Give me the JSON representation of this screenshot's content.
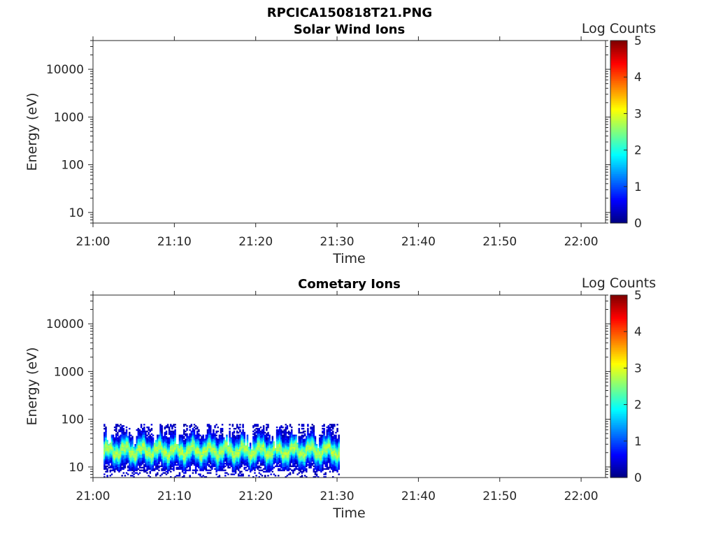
{
  "figure_title": "RPCICA150818T21.PNG",
  "colorscale": [
    "#00007f",
    "#0000ff",
    "#007fff",
    "#00ffff",
    "#7fff7f",
    "#ffff00",
    "#ff7f00",
    "#ff0000",
    "#7f0000"
  ],
  "chart_data": [
    {
      "type": "heatmap",
      "title": "Solar Wind Ions",
      "xlabel": "Time",
      "ylabel": "Energy (eV)",
      "yscale": "log",
      "xlim": [
        "21:00",
        "22:03"
      ],
      "ylim": [
        6,
        40000
      ],
      "x_ticks": [
        "21:00",
        "21:10",
        "21:20",
        "21:30",
        "21:40",
        "21:50",
        "22:00"
      ],
      "y_ticks": [
        "10",
        "100",
        "1000",
        "10000"
      ],
      "colorbar": {
        "label": "Log Counts",
        "ticks": [
          "0",
          "1",
          "2",
          "3",
          "4",
          "5"
        ],
        "range": [
          0,
          5
        ]
      },
      "data_present": false
    },
    {
      "type": "heatmap",
      "title": "Cometary Ions",
      "xlabel": "Time",
      "ylabel": "Energy (eV)",
      "yscale": "log",
      "xlim": [
        "21:00",
        "22:03"
      ],
      "ylim": [
        6,
        40000
      ],
      "x_ticks": [
        "21:00",
        "21:10",
        "21:20",
        "21:30",
        "21:40",
        "21:50",
        "22:00"
      ],
      "y_ticks": [
        "10",
        "100",
        "1000",
        "10000"
      ],
      "colorbar": {
        "label": "Log Counts",
        "ticks": [
          "0",
          "1",
          "2",
          "3",
          "4",
          "5"
        ],
        "range": [
          0,
          5
        ]
      },
      "data_present": true,
      "data_time_range": [
        "21:01",
        "21:30"
      ],
      "data_energy_range_eV": [
        6,
        80
      ],
      "peak_energy_eV": 22,
      "peak_log_counts": 2.5
    }
  ]
}
